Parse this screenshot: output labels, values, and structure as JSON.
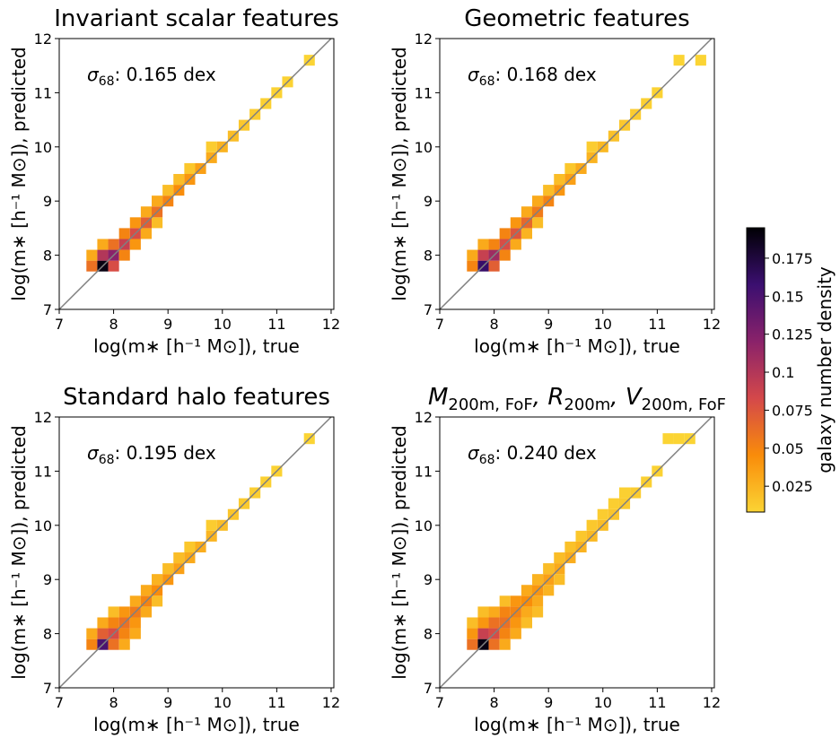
{
  "chart_data": [
    {
      "type": "heatmap",
      "title": "Invariant scalar features",
      "annotation": {
        "symbol": "σ",
        "sub": "68",
        "text": ": 0.165 dex"
      },
      "xlabel": "log(m∗ [h⁻¹ M⊙]), true",
      "ylabel": "log(m∗ [h⁻¹ M⊙]), predicted",
      "xlim": [
        7,
        12.05
      ],
      "ylim": [
        7,
        12
      ],
      "xticks": [
        7,
        8,
        9,
        10,
        11,
        12
      ],
      "yticks": [
        7,
        8,
        9,
        10,
        11,
        12
      ],
      "diagonal": true,
      "cell_size": 0.2,
      "cells": [
        [
          7.5,
          7.7,
          0.06
        ],
        [
          7.5,
          7.9,
          0.03
        ],
        [
          7.7,
          7.7,
          0.19
        ],
        [
          7.7,
          7.9,
          0.1
        ],
        [
          7.7,
          8.1,
          0.03
        ],
        [
          7.9,
          7.7,
          0.08
        ],
        [
          7.9,
          7.9,
          0.12
        ],
        [
          7.9,
          8.1,
          0.06
        ],
        [
          8.1,
          7.9,
          0.05
        ],
        [
          8.1,
          8.1,
          0.09
        ],
        [
          8.1,
          8.3,
          0.05
        ],
        [
          8.3,
          8.1,
          0.04
        ],
        [
          8.3,
          8.3,
          0.08
        ],
        [
          8.3,
          8.5,
          0.04
        ],
        [
          8.5,
          8.3,
          0.03
        ],
        [
          8.5,
          8.5,
          0.07
        ],
        [
          8.5,
          8.7,
          0.03
        ],
        [
          8.7,
          8.5,
          0.02
        ],
        [
          8.7,
          8.7,
          0.06
        ],
        [
          8.7,
          8.9,
          0.03
        ],
        [
          8.9,
          8.9,
          0.05
        ],
        [
          8.9,
          9.1,
          0.02
        ],
        [
          9.1,
          9.1,
          0.045
        ],
        [
          9.1,
          9.3,
          0.02
        ],
        [
          9.3,
          9.3,
          0.04
        ],
        [
          9.3,
          9.5,
          0.015
        ],
        [
          9.5,
          9.5,
          0.035
        ],
        [
          9.7,
          9.7,
          0.03
        ],
        [
          9.7,
          9.9,
          0.012
        ],
        [
          9.9,
          9.9,
          0.025
        ],
        [
          10.1,
          10.1,
          0.02
        ],
        [
          10.3,
          10.3,
          0.015
        ],
        [
          10.5,
          10.5,
          0.012
        ],
        [
          10.7,
          10.7,
          0.01
        ],
        [
          10.9,
          10.9,
          0.009
        ],
        [
          11.1,
          11.1,
          0.009
        ],
        [
          11.5,
          11.5,
          0.008
        ]
      ]
    },
    {
      "type": "heatmap",
      "title": "Geometric features",
      "annotation": {
        "symbol": "σ",
        "sub": "68",
        "text": ": 0.168 dex"
      },
      "xlabel": "log(m∗ [h⁻¹ M⊙]), true",
      "ylabel": "log(m∗ [h⁻¹ M⊙]), predicted",
      "xlim": [
        7,
        12.05
      ],
      "ylim": [
        7,
        12
      ],
      "xticks": [
        7,
        8,
        9,
        10,
        11,
        12
      ],
      "yticks": [
        7,
        8,
        9,
        10,
        11,
        12
      ],
      "diagonal": true,
      "cell_size": 0.2,
      "cells": [
        [
          7.5,
          7.7,
          0.05
        ],
        [
          7.5,
          7.9,
          0.03
        ],
        [
          7.7,
          7.7,
          0.16
        ],
        [
          7.7,
          7.9,
          0.09
        ],
        [
          7.7,
          8.1,
          0.03
        ],
        [
          7.9,
          7.7,
          0.07
        ],
        [
          7.9,
          7.9,
          0.11
        ],
        [
          7.9,
          8.1,
          0.05
        ],
        [
          8.1,
          7.9,
          0.05
        ],
        [
          8.1,
          8.1,
          0.08
        ],
        [
          8.1,
          8.3,
          0.05
        ],
        [
          8.3,
          8.1,
          0.03
        ],
        [
          8.3,
          8.3,
          0.075
        ],
        [
          8.3,
          8.5,
          0.04
        ],
        [
          8.5,
          8.3,
          0.025
        ],
        [
          8.5,
          8.5,
          0.065
        ],
        [
          8.5,
          8.7,
          0.03
        ],
        [
          8.7,
          8.5,
          0.02
        ],
        [
          8.7,
          8.7,
          0.055
        ],
        [
          8.7,
          8.9,
          0.03
        ],
        [
          8.9,
          8.9,
          0.05
        ],
        [
          8.9,
          9.1,
          0.02
        ],
        [
          9.1,
          9.1,
          0.04
        ],
        [
          9.1,
          9.3,
          0.02
        ],
        [
          9.3,
          9.3,
          0.035
        ],
        [
          9.3,
          9.5,
          0.015
        ],
        [
          9.5,
          9.5,
          0.03
        ],
        [
          9.7,
          9.7,
          0.025
        ],
        [
          9.7,
          9.9,
          0.012
        ],
        [
          9.9,
          9.9,
          0.022
        ],
        [
          10.1,
          10.1,
          0.018
        ],
        [
          10.3,
          10.3,
          0.014
        ],
        [
          10.5,
          10.5,
          0.012
        ],
        [
          10.7,
          10.7,
          0.01
        ],
        [
          10.9,
          10.9,
          0.009
        ],
        [
          11.3,
          11.5,
          0.008
        ],
        [
          11.7,
          11.5,
          0.008
        ]
      ]
    },
    {
      "type": "heatmap",
      "title": "Standard halo features",
      "annotation": {
        "symbol": "σ",
        "sub": "68",
        "text": ": 0.195 dex"
      },
      "xlabel": "log(m∗ [h⁻¹ M⊙]), true",
      "ylabel": "log(m∗ [h⁻¹ M⊙]), predicted",
      "xlim": [
        7,
        12.05
      ],
      "ylim": [
        7,
        12
      ],
      "xticks": [
        7,
        8,
        9,
        10,
        11,
        12
      ],
      "yticks": [
        7,
        8,
        9,
        10,
        11,
        12
      ],
      "diagonal": true,
      "cell_size": 0.2,
      "cells": [
        [
          7.5,
          7.7,
          0.05
        ],
        [
          7.5,
          7.9,
          0.03
        ],
        [
          7.7,
          7.7,
          0.15
        ],
        [
          7.7,
          7.9,
          0.07
        ],
        [
          7.7,
          8.1,
          0.03
        ],
        [
          7.9,
          7.7,
          0.06
        ],
        [
          7.9,
          7.9,
          0.08
        ],
        [
          7.9,
          8.1,
          0.05
        ],
        [
          7.9,
          8.3,
          0.02
        ],
        [
          8.1,
          7.7,
          0.03
        ],
        [
          8.1,
          7.9,
          0.05
        ],
        [
          8.1,
          8.1,
          0.06
        ],
        [
          8.1,
          8.3,
          0.04
        ],
        [
          8.3,
          7.9,
          0.03
        ],
        [
          8.3,
          8.1,
          0.04
        ],
        [
          8.3,
          8.3,
          0.055
        ],
        [
          8.3,
          8.5,
          0.03
        ],
        [
          8.5,
          8.3,
          0.03
        ],
        [
          8.5,
          8.5,
          0.05
        ],
        [
          8.5,
          8.7,
          0.03
        ],
        [
          8.7,
          8.5,
          0.02
        ],
        [
          8.7,
          8.7,
          0.045
        ],
        [
          8.7,
          8.9,
          0.025
        ],
        [
          8.9,
          8.9,
          0.04
        ],
        [
          8.9,
          9.1,
          0.02
        ],
        [
          9.1,
          9.1,
          0.035
        ],
        [
          9.1,
          9.3,
          0.02
        ],
        [
          9.3,
          9.3,
          0.03
        ],
        [
          9.3,
          9.5,
          0.015
        ],
        [
          9.5,
          9.5,
          0.028
        ],
        [
          9.7,
          9.7,
          0.024
        ],
        [
          9.7,
          9.9,
          0.012
        ],
        [
          9.9,
          9.9,
          0.02
        ],
        [
          10.1,
          10.1,
          0.016
        ],
        [
          10.3,
          10.3,
          0.013
        ],
        [
          10.5,
          10.5,
          0.011
        ],
        [
          10.7,
          10.7,
          0.01
        ],
        [
          10.9,
          10.9,
          0.009
        ],
        [
          11.5,
          11.5,
          0.008
        ]
      ]
    },
    {
      "type": "heatmap",
      "title_parts": [
        {
          "base": "M",
          "sub": "200m, FoF"
        },
        {
          "base": ", R",
          "sub": "200m"
        },
        {
          "base": ", V",
          "sub": "200m, FoF"
        }
      ],
      "annotation": {
        "symbol": "σ",
        "sub": "68",
        "text": ": 0.240 dex"
      },
      "xlabel": "log(m∗ [h⁻¹ M⊙]), true",
      "ylabel": "log(m∗ [h⁻¹ M⊙]), predicted",
      "xlim": [
        7,
        12.05
      ],
      "ylim": [
        7,
        12
      ],
      "xticks": [
        7,
        8,
        9,
        10,
        11,
        12
      ],
      "yticks": [
        7,
        8,
        9,
        10,
        11,
        12
      ],
      "diagonal": true,
      "cell_size": 0.2,
      "cells": [
        [
          7.5,
          7.7,
          0.06
        ],
        [
          7.5,
          7.9,
          0.04
        ],
        [
          7.5,
          8.1,
          0.02
        ],
        [
          7.7,
          7.7,
          0.19
        ],
        [
          7.7,
          7.9,
          0.09
        ],
        [
          7.7,
          8.1,
          0.04
        ],
        [
          7.7,
          8.3,
          0.02
        ],
        [
          7.9,
          7.7,
          0.06
        ],
        [
          7.9,
          7.9,
          0.08
        ],
        [
          7.9,
          8.1,
          0.06
        ],
        [
          7.9,
          8.3,
          0.03
        ],
        [
          8.1,
          7.7,
          0.03
        ],
        [
          8.1,
          7.9,
          0.05
        ],
        [
          8.1,
          8.1,
          0.06
        ],
        [
          8.1,
          8.3,
          0.05
        ],
        [
          8.1,
          8.5,
          0.02
        ],
        [
          8.3,
          7.9,
          0.03
        ],
        [
          8.3,
          8.1,
          0.04
        ],
        [
          8.3,
          8.3,
          0.05
        ],
        [
          8.3,
          8.5,
          0.04
        ],
        [
          8.5,
          8.1,
          0.02
        ],
        [
          8.5,
          8.3,
          0.03
        ],
        [
          8.5,
          8.5,
          0.045
        ],
        [
          8.5,
          8.7,
          0.03
        ],
        [
          8.7,
          8.3,
          0.02
        ],
        [
          8.7,
          8.5,
          0.03
        ],
        [
          8.7,
          8.7,
          0.04
        ],
        [
          8.7,
          8.9,
          0.025
        ],
        [
          8.9,
          8.7,
          0.025
        ],
        [
          8.9,
          8.9,
          0.035
        ],
        [
          8.9,
          9.1,
          0.02
        ],
        [
          9.1,
          8.9,
          0.02
        ],
        [
          9.1,
          9.1,
          0.03
        ],
        [
          9.1,
          9.3,
          0.02
        ],
        [
          9.3,
          9.3,
          0.028
        ],
        [
          9.3,
          9.5,
          0.018
        ],
        [
          9.5,
          9.5,
          0.025
        ],
        [
          9.5,
          9.7,
          0.015
        ],
        [
          9.7,
          9.7,
          0.022
        ],
        [
          9.7,
          9.9,
          0.014
        ],
        [
          9.9,
          9.9,
          0.02
        ],
        [
          9.9,
          10.1,
          0.012
        ],
        [
          10.1,
          10.1,
          0.016
        ],
        [
          10.1,
          10.3,
          0.011
        ],
        [
          10.3,
          10.3,
          0.013
        ],
        [
          10.3,
          10.5,
          0.01
        ],
        [
          10.5,
          10.5,
          0.012
        ],
        [
          10.7,
          10.7,
          0.01
        ],
        [
          10.9,
          10.9,
          0.009
        ],
        [
          11.1,
          11.5,
          0.008
        ],
        [
          11.3,
          11.5,
          0.008
        ],
        [
          11.5,
          11.5,
          0.008
        ]
      ]
    }
  ],
  "colorbar": {
    "label": "galaxy number density",
    "clim": [
      0.008,
      0.195
    ],
    "ticks": [
      0.025,
      0.05,
      0.075,
      0.1,
      0.125,
      0.15,
      0.175
    ],
    "colormap": [
      "#fbd434",
      "#f98c0a",
      "#d4484a",
      "#8a226a",
      "#3b0f70",
      "#000004"
    ]
  }
}
